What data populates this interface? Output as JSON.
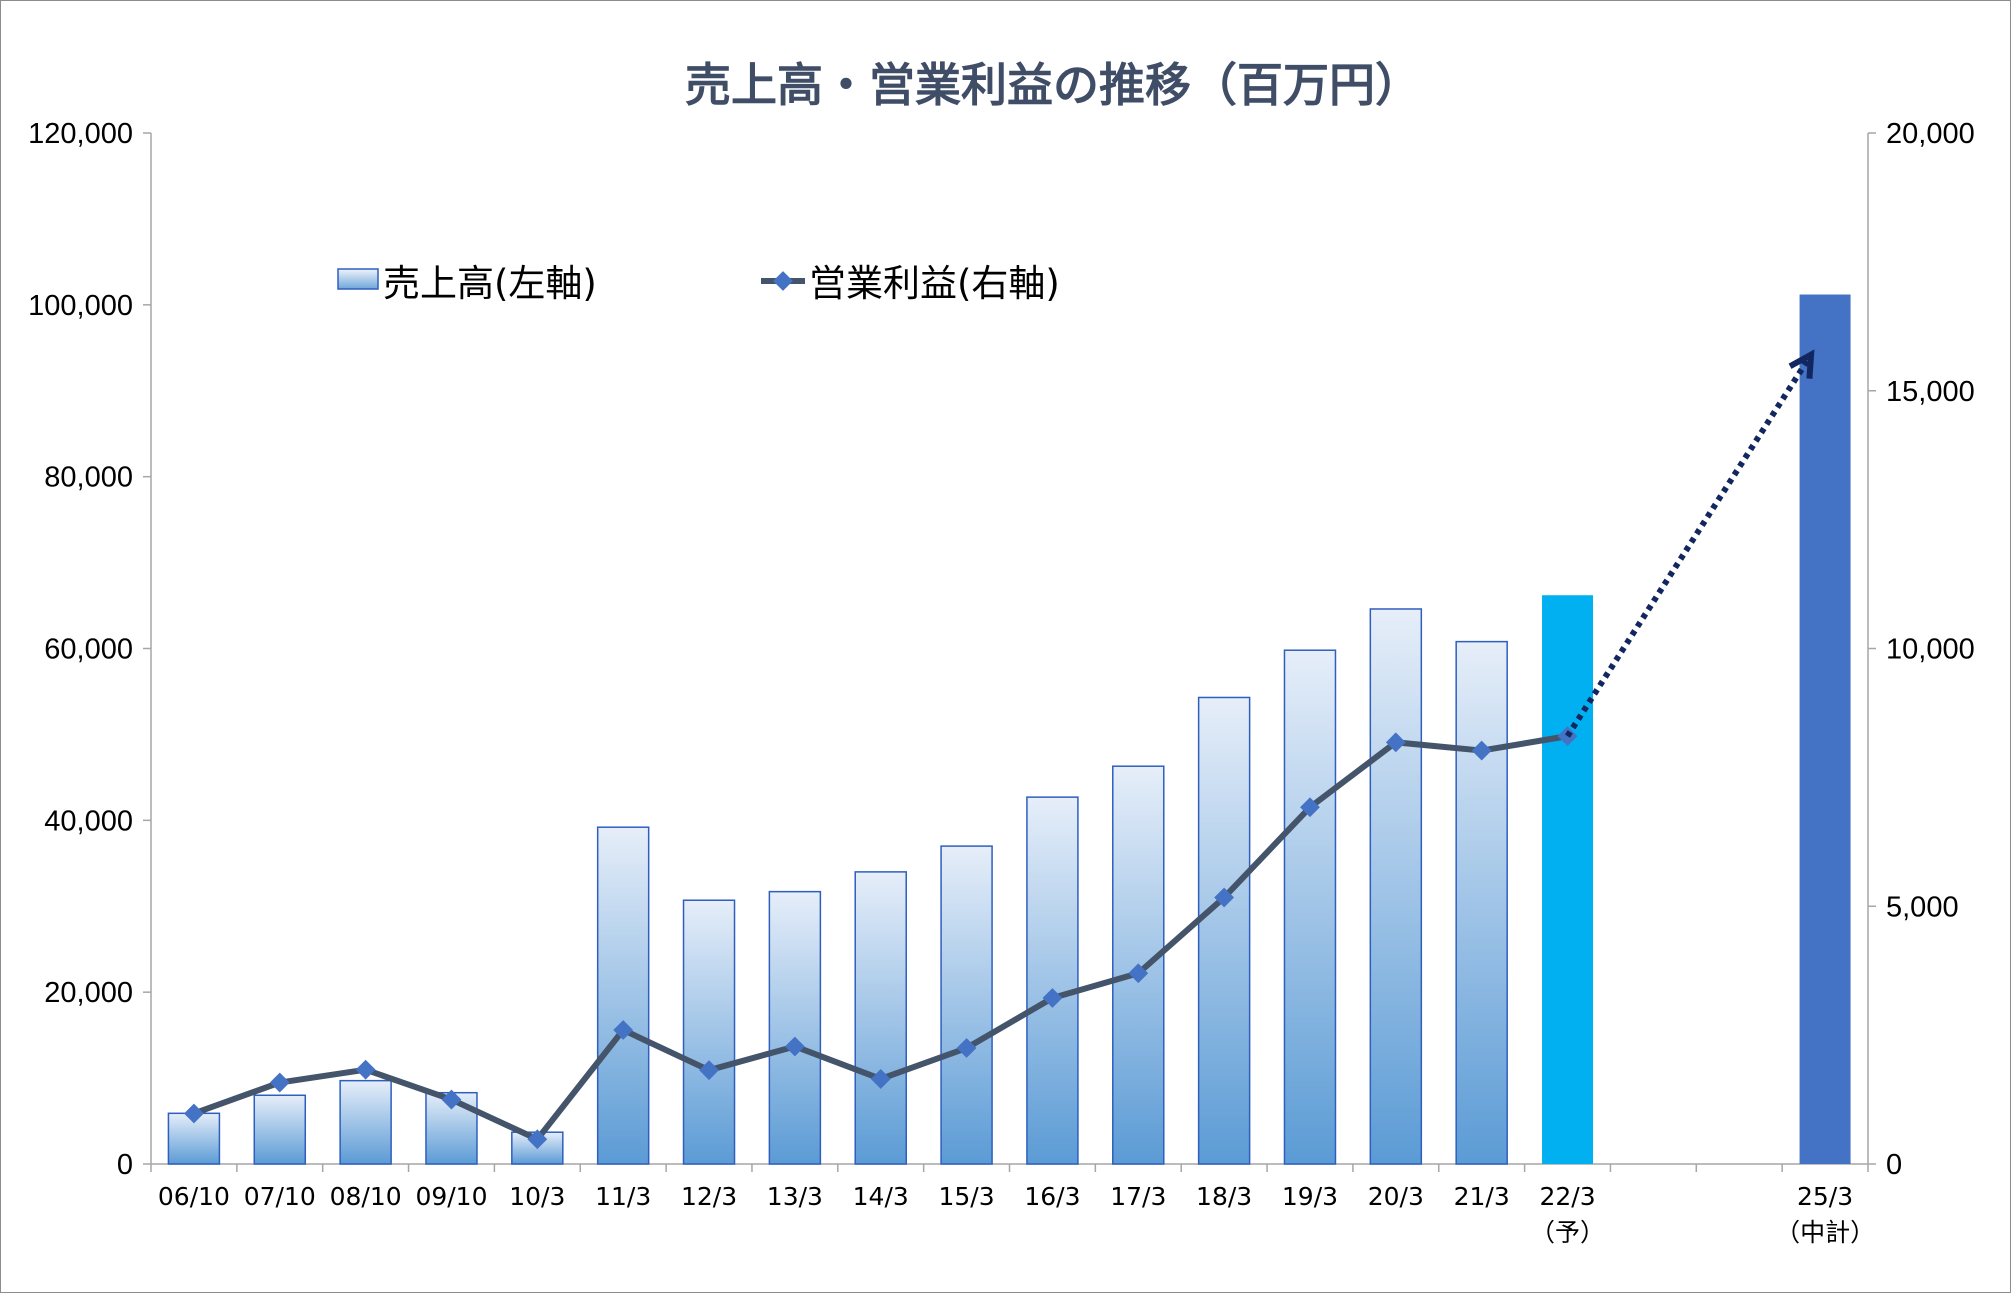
{
  "chart_data": {
    "type": "bar",
    "title": "売上高・営業利益の推移（百万円）",
    "categories": [
      "06/10",
      "07/10",
      "08/10",
      "09/10",
      "10/3",
      "11/3",
      "12/3",
      "13/3",
      "14/3",
      "15/3",
      "16/3",
      "17/3",
      "18/3",
      "19/3",
      "20/3",
      "21/3",
      "22/3",
      "",
      "",
      "25/3"
    ],
    "category_notes": [
      "",
      "",
      "",
      "",
      "",
      "",
      "",
      "",
      "",
      "",
      "",
      "",
      "",
      "",
      "",
      "",
      "（予）",
      "",
      "",
      "（中計）"
    ],
    "series": [
      {
        "name": "売上高(左軸)",
        "type": "bar",
        "axis": "left",
        "values": [
          5900,
          8000,
          9700,
          8300,
          3700,
          39200,
          30700,
          31700,
          34000,
          37000,
          42700,
          46300,
          54300,
          59800,
          64600,
          60800,
          66200,
          null,
          null,
          101200
        ],
        "highlight": {
          "16": "#00b0f0",
          "19": "#4472c4"
        }
      },
      {
        "name": "営業利益(右軸)",
        "type": "line",
        "axis": "right",
        "values": [
          980,
          1580,
          1830,
          1250,
          480,
          2600,
          1820,
          2280,
          1650,
          2250,
          3220,
          3700,
          5170,
          6920,
          8180,
          8020,
          8300,
          null,
          null,
          null
        ],
        "forecast_arrow": {
          "from_index": 16,
          "from_value": 8300,
          "to_index": 19,
          "to_value": 15700
        }
      }
    ],
    "y_left": {
      "min": 0,
      "max": 120000,
      "step": 20000,
      "tick_labels": [
        "0",
        "20,000",
        "40,000",
        "60,000",
        "80,000",
        "100,000",
        "120,000"
      ]
    },
    "y_right": {
      "min": 0,
      "max": 20000,
      "step": 5000,
      "tick_labels": [
        "0",
        "5,000",
        "10,000",
        "15,000",
        "20,000"
      ]
    },
    "grid": false,
    "legend_position": "top-left"
  },
  "colors": {
    "bar_gradient_top": "#e6eef9",
    "bar_gradient_bottom": "#5b9bd5",
    "bar_border": "#2e5fbf",
    "line": "#44546a",
    "marker": "#4472c4",
    "arrow": "#12275f",
    "axis": "#a6a6a6",
    "title": "#3f4d66"
  }
}
